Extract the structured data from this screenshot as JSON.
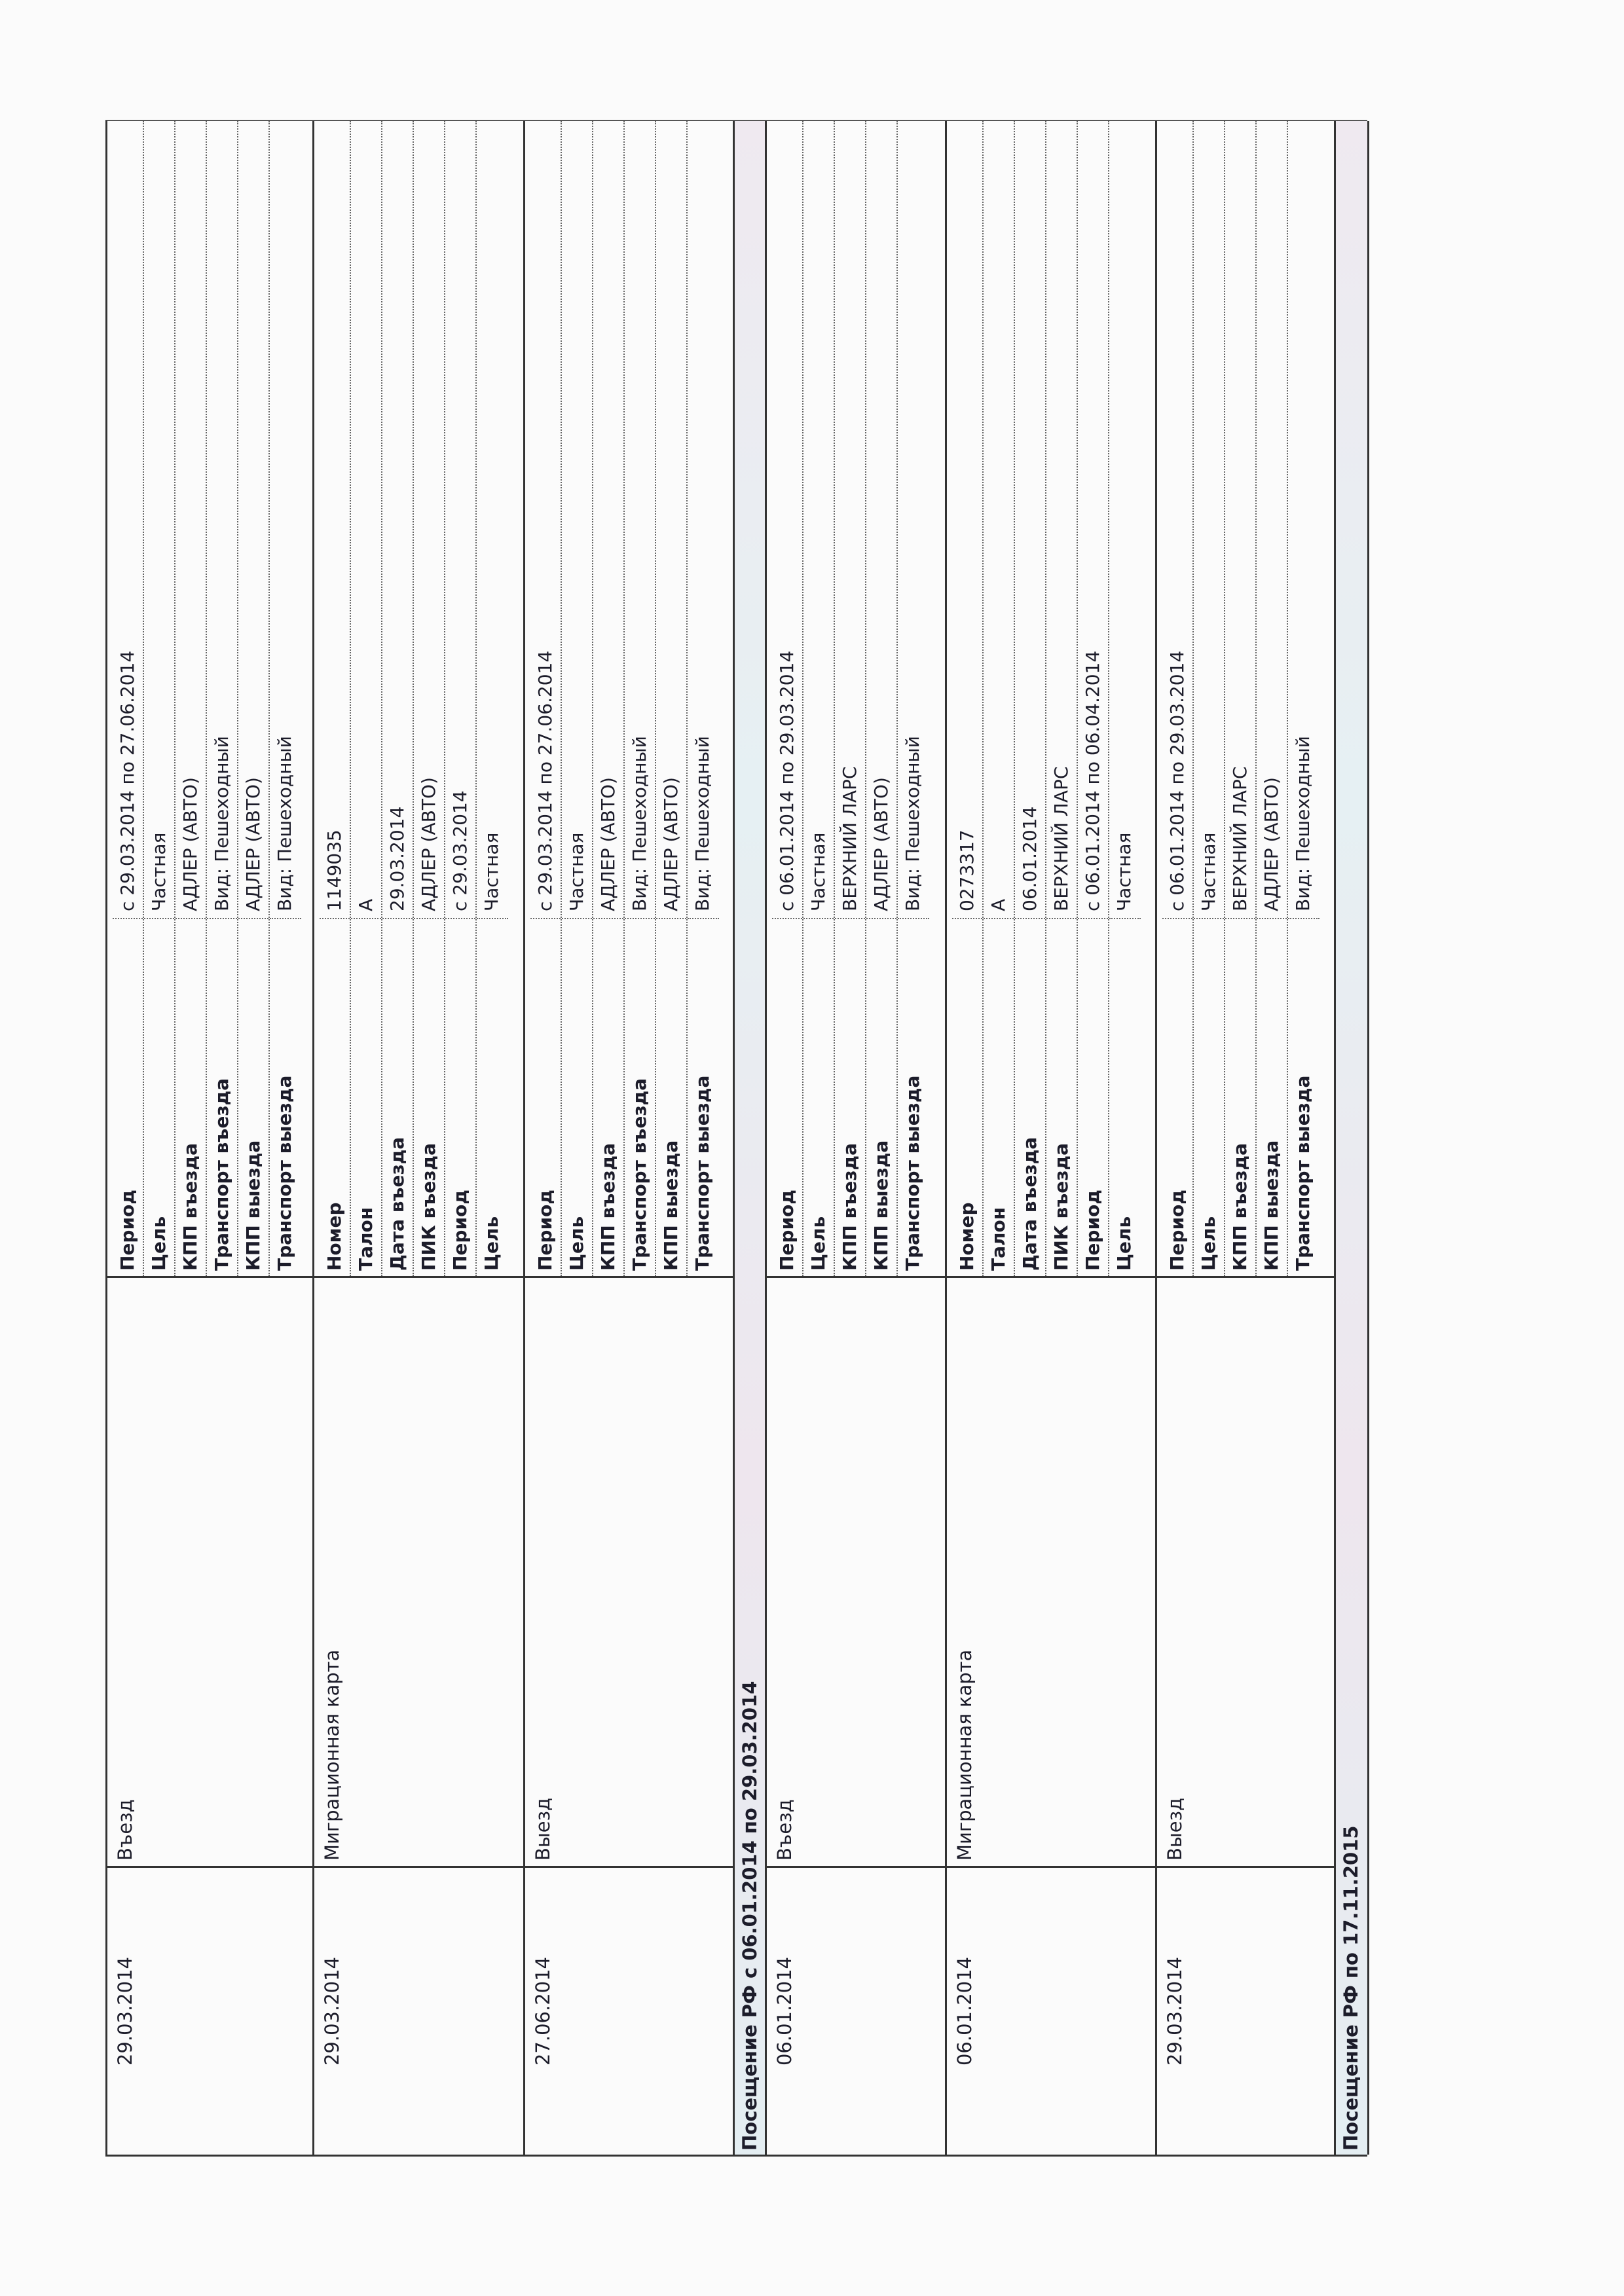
{
  "table": {
    "blocks": [
      {
        "kind": "group",
        "date": "29.03.2014",
        "type": "Въезд",
        "rows": [
          [
            "Период",
            "с 29.03.2014 по 27.06.2014"
          ],
          [
            "Цель",
            "Частная"
          ],
          [
            "КПП въезда",
            "АДЛЕР (АВТО)"
          ],
          [
            "Транспорт въезда",
            "Вид: Пешеходный"
          ],
          [
            "КПП выезда",
            "АДЛЕР (АВТО)"
          ],
          [
            "Транспорт выезда",
            "Вид: Пешеходный"
          ]
        ]
      },
      {
        "kind": "group",
        "date": "29.03.2014",
        "type": "Миграционная карта",
        "rows": [
          [
            "Номер",
            "1149035"
          ],
          [
            "Талон",
            "А"
          ],
          [
            "Дата въезда",
            "29.03.2014"
          ],
          [
            "ПИК въезда",
            "АДЛЕР (АВТО)"
          ],
          [
            "Период",
            "с 29.03.2014"
          ],
          [
            "Цель",
            "Частная"
          ]
        ]
      },
      {
        "kind": "group",
        "date": "27.06.2014",
        "type": "Выезд",
        "rows": [
          [
            "Период",
            "с 29.03.2014 по 27.06.2014"
          ],
          [
            "Цель",
            "Частная"
          ],
          [
            "КПП въезда",
            "АДЛЕР (АВТО)"
          ],
          [
            "Транспорт въезда",
            "Вид: Пешеходный"
          ],
          [
            "КПП выезда",
            "АДЛЕР (АВТО)"
          ],
          [
            "Транспорт выезда",
            "Вид: Пешеходный"
          ]
        ]
      },
      {
        "kind": "header",
        "text": "Посещение РФ  с 06.01.2014 по 29.03.2014"
      },
      {
        "kind": "group",
        "date": "06.01.2014",
        "type": "Въезд",
        "rows": [
          [
            "Период",
            "с 06.01.2014 по 29.03.2014"
          ],
          [
            "Цель",
            "Частная"
          ],
          [
            "КПП въезда",
            "ВЕРХНИЙ ЛАРС"
          ],
          [
            "КПП выезда",
            "АДЛЕР (АВТО)"
          ],
          [
            "Транспорт выезда",
            "Вид: Пешеходный"
          ]
        ]
      },
      {
        "kind": "group",
        "date": "06.01.2014",
        "type": "Миграционная карта",
        "rows": [
          [
            "Номер",
            "0273317"
          ],
          [
            "Талон",
            "А"
          ],
          [
            "Дата въезда",
            "06.01.2014"
          ],
          [
            "ПИК въезда",
            "ВЕРХНИЙ ЛАРС"
          ],
          [
            "Период",
            "с 06.01.2014 по 06.04.2014"
          ],
          [
            "Цель",
            "Частная"
          ]
        ]
      },
      {
        "kind": "group",
        "date": "29.03.2014",
        "type": "Выезд",
        "rows": [
          [
            "Период",
            "с 06.01.2014 по 29.03.2014"
          ],
          [
            "Цель",
            "Частная"
          ],
          [
            "КПП въезда",
            "ВЕРХНИЙ ЛАРС"
          ],
          [
            "КПП выезда",
            "АДЛЕР (АВТО)"
          ],
          [
            "Транспорт выезда",
            "Вид: Пешеходный"
          ]
        ]
      },
      {
        "kind": "header",
        "text": "Посещение РФ  по 17.11.2015"
      }
    ]
  }
}
